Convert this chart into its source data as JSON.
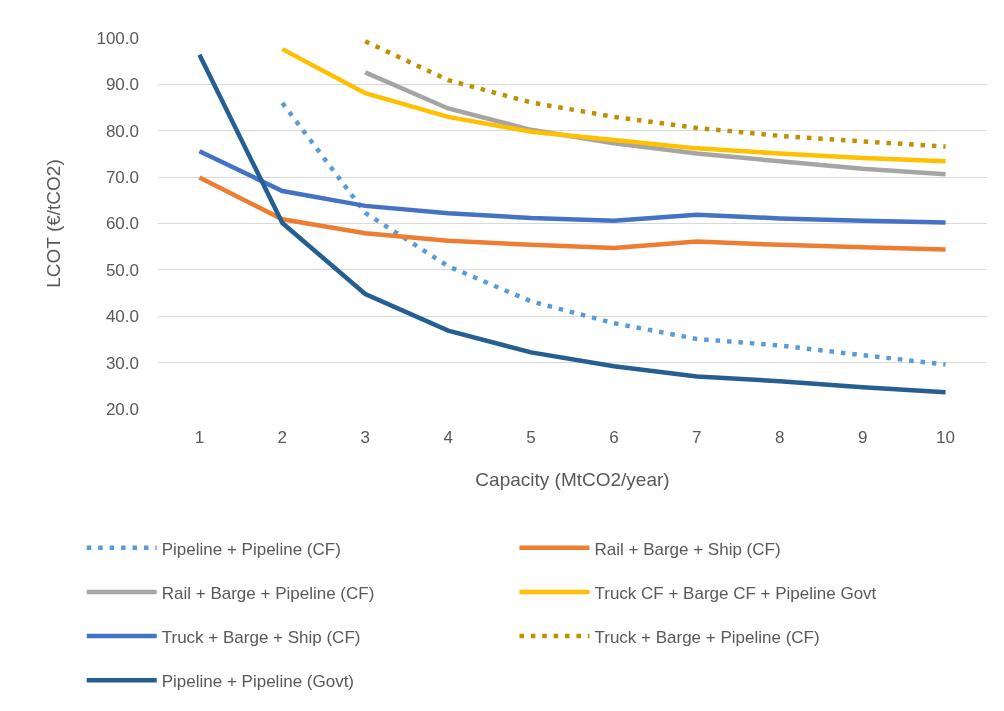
{
  "chart_data": {
    "type": "line",
    "xlabel": "Capacity (MtCO2/year)",
    "ylabel": "LCOT (€/tCO2)",
    "categories": [
      "1",
      "2",
      "3",
      "4",
      "5",
      "6",
      "7",
      "8",
      "9",
      "10"
    ],
    "ylim": [
      20,
      100
    ],
    "yticks": [
      {
        "value": 20,
        "label": "20.0"
      },
      {
        "value": 30,
        "label": "30.0"
      },
      {
        "value": 40,
        "label": "40.0"
      },
      {
        "value": 50,
        "label": "50.0"
      },
      {
        "value": 60,
        "label": "60.0"
      },
      {
        "value": 70,
        "label": "70.0"
      },
      {
        "value": 80,
        "label": "80.0"
      },
      {
        "value": 90,
        "label": "90.0"
      },
      {
        "value": 100,
        "label": "100.0"
      }
    ],
    "grid": "y",
    "legend": "bottom",
    "series": [
      {
        "name": "Pipeline + Pipeline (CF)",
        "color": "#5b9bd5",
        "line_style": "dotted",
        "values": [
          null,
          86.0,
          62.3,
          50.8,
          43.2,
          38.5,
          35.1,
          33.7,
          31.6,
          29.6
        ]
      },
      {
        "name": "Rail + Barge + Ship (CF)",
        "color": "#ed7d31",
        "line_style": "solid",
        "values": [
          69.9,
          60.9,
          57.9,
          56.3,
          55.4,
          54.7,
          56.1,
          55.4,
          54.9,
          54.4
        ]
      },
      {
        "name": "Rail + Barge + Pipeline (CF)",
        "color": "#a5a5a5",
        "line_style": "solid",
        "values": [
          null,
          null,
          92.6,
          84.8,
          80.2,
          77.3,
          75.1,
          73.4,
          71.8,
          70.6
        ]
      },
      {
        "name": "Truck CF + Barge CF + Pipeline Govt",
        "color": "#ffc000",
        "line_style": "solid",
        "values": [
          null,
          97.6,
          88.1,
          83.0,
          79.8,
          78.0,
          76.2,
          75.1,
          74.1,
          73.4
        ]
      },
      {
        "name": "Truck + Barge + Ship (CF)",
        "color": "#4472c4",
        "line_style": "solid",
        "values": [
          75.6,
          67.0,
          63.8,
          62.2,
          61.2,
          60.6,
          61.9,
          61.1,
          60.6,
          60.2
        ]
      },
      {
        "name": "Truck + Barge + Pipeline (CF)",
        "color": "#bf9000",
        "line_style": "dotted",
        "values": [
          null,
          null,
          99.3,
          90.9,
          86.1,
          83.0,
          80.6,
          78.9,
          77.7,
          76.6
        ]
      },
      {
        "name": "Pipeline + Pipeline (Govt)",
        "color": "#255e91",
        "line_style": "solid",
        "values": [
          96.4,
          60.1,
          44.8,
          36.9,
          32.2,
          29.2,
          27.0,
          26.0,
          24.7,
          23.6
        ]
      }
    ]
  }
}
